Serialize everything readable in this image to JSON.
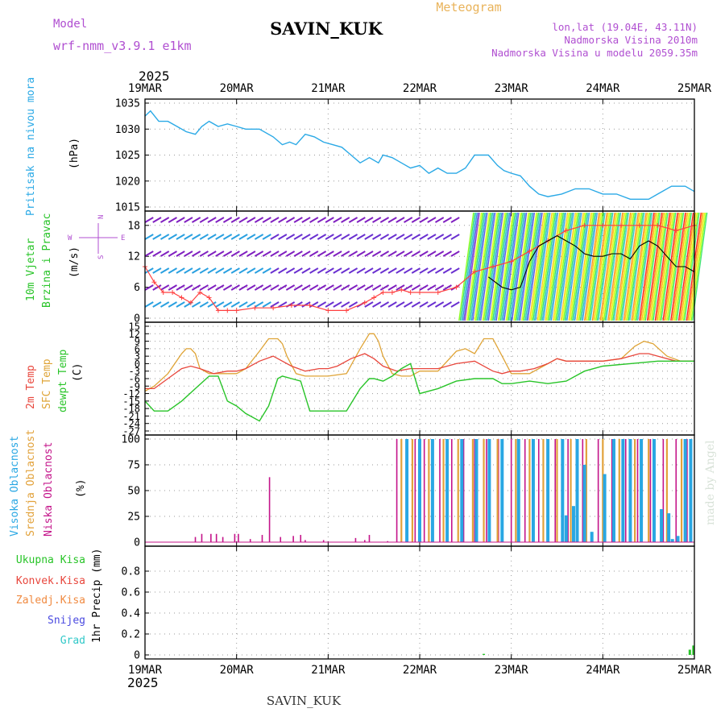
{
  "header": {
    "model_label": "Model",
    "model_name": "wrf-nmm_v3.9.1 e1km",
    "station": "SAVIN_KUK",
    "product": "Meteogram",
    "lonlat": "lon,lat (19.04E, 43.11N)",
    "elevation": "Nadmorska Visina 2010m",
    "model_elevation": "Nadmorska Visina u modelu 2059.35m",
    "year": "2025",
    "footer_station": "SAVIN_KUK",
    "credit": "made by Angel"
  },
  "colors": {
    "pressure": "#2aa9e6",
    "temp2m": "#e8463c",
    "sfc_temp": "#dfa437",
    "dewpoint": "#28c428",
    "high_cloud": "#29a7e3",
    "mid_cloud": "#e2a23b",
    "low_cloud": "#c4148a",
    "wind_speed": "#ff4040",
    "gust": "#000000",
    "label_purple": "#b04fd1",
    "label_orange": "#e9b35a"
  },
  "x_axis": {
    "tick_labels": [
      "19MAR",
      "20MAR",
      "21MAR",
      "22MAR",
      "23MAR",
      "24MAR",
      "25MAR"
    ],
    "range_days": [
      0,
      6
    ]
  },
  "chart_data": [
    {
      "type": "line",
      "id": "pressure",
      "ylabel": "(hPa)",
      "side_labels": [
        "Pritisak na nivou mora"
      ],
      "yticks": [
        "1015",
        "1020",
        "1025",
        "1030",
        "1035"
      ],
      "ylim": [
        1015,
        1035
      ],
      "grid": true,
      "series": [
        {
          "x": [
            0,
            0.06,
            0.15,
            0.25,
            0.35,
            0.45,
            0.55,
            0.62,
            0.7,
            0.8,
            0.9,
            1.0,
            1.1,
            1.25,
            1.4,
            1.5,
            1.58,
            1.65,
            1.75,
            1.85,
            1.95,
            2.05,
            2.15,
            2.25,
            2.35,
            2.45,
            2.55,
            2.6,
            2.7,
            2.8,
            2.9,
            3.0,
            3.1,
            3.2,
            3.3,
            3.4,
            3.5,
            3.6,
            3.75,
            3.85,
            3.92,
            4.0,
            4.1,
            4.2,
            4.3,
            4.4,
            4.55,
            4.7,
            4.85,
            5.0,
            5.15,
            5.3,
            5.45,
            5.5,
            5.6,
            5.75,
            5.9,
            6.0
          ],
          "values": [
            1032.5,
            1033.5,
            1031.5,
            1031.5,
            1030.5,
            1029.5,
            1029.0,
            1030.5,
            1031.5,
            1030.5,
            1031.0,
            1030.5,
            1030.0,
            1030.0,
            1028.5,
            1027.0,
            1027.5,
            1027.0,
            1029.0,
            1028.5,
            1027.5,
            1027.0,
            1026.5,
            1025.0,
            1023.5,
            1024.5,
            1023.5,
            1025.0,
            1024.5,
            1023.5,
            1022.5,
            1023.0,
            1021.5,
            1022.5,
            1021.5,
            1021.5,
            1022.5,
            1025.0,
            1025.0,
            1023.0,
            1022.0,
            1021.5,
            1021.0,
            1019.0,
            1017.5,
            1017.0,
            1017.5,
            1018.5,
            1018.5,
            1017.5,
            1017.5,
            1016.5,
            1016.5,
            1016.5,
            1017.5,
            1019.0,
            1019.0,
            1018.0
          ]
        }
      ]
    },
    {
      "type": "line",
      "id": "wind",
      "ylabel": "(m/s)",
      "side_labels": [
        "10m Vjetar",
        "Brzina i Pravac"
      ],
      "compass": {
        "n": "N",
        "s": "S",
        "w": "W",
        "e": "E"
      },
      "yticks": [
        "0",
        "6",
        "12",
        "18"
      ],
      "ylim": [
        0,
        20
      ],
      "grid": true,
      "series": [
        {
          "name": "wind_speed",
          "x": [
            0,
            0.1,
            0.2,
            0.3,
            0.4,
            0.5,
            0.6,
            0.7,
            0.8,
            0.9,
            1.0,
            1.2,
            1.4,
            1.6,
            1.8,
            2.0,
            2.2,
            2.4,
            2.5,
            2.6,
            2.7,
            2.8,
            2.9,
            3.0,
            3.2,
            3.4,
            3.6,
            3.8,
            4.0,
            4.2,
            4.4,
            4.6,
            4.8,
            5.0,
            5.2,
            5.4,
            5.6,
            5.8,
            6.0
          ],
          "values": [
            10,
            7,
            5,
            5,
            4,
            3,
            5,
            4,
            1.5,
            1.5,
            1.5,
            2,
            2,
            2.5,
            2.5,
            1.5,
            1.5,
            3,
            4,
            5,
            5,
            5.5,
            5,
            5,
            5,
            6,
            9,
            10,
            11,
            13,
            15,
            17,
            18,
            18,
            18,
            18,
            18,
            17,
            18
          ]
        },
        {
          "name": "gust",
          "x": [
            3.75,
            3.9,
            4.0,
            4.1,
            4.2,
            4.3,
            4.4,
            4.5,
            4.6,
            4.7,
            4.8,
            4.9,
            5.0,
            5.1,
            5.2,
            5.3,
            5.4,
            5.5,
            5.6,
            5.7,
            5.8,
            5.9,
            6.0
          ],
          "values": [
            8,
            6,
            5.5,
            6,
            11,
            14,
            15,
            16,
            15,
            14,
            12.5,
            12,
            12,
            12.5,
            12.5,
            11.5,
            14,
            15,
            14,
            12,
            10,
            10,
            9
          ]
        }
      ]
    },
    {
      "type": "line",
      "id": "temperature",
      "ylabel": "(C)",
      "side_labels": [
        "2m Temp",
        "SFC Temp",
        "dewpt Temp"
      ],
      "yticks": [
        "-27",
        "-24",
        "-21",
        "-18",
        "-15",
        "-12",
        "-9",
        "-6",
        "-3",
        "0",
        "3",
        "6",
        "9",
        "12",
        "15"
      ],
      "ylim": [
        -27,
        15
      ],
      "grid": true,
      "series": [
        {
          "name": "2m Temp",
          "x": [
            0,
            0.1,
            0.25,
            0.4,
            0.5,
            0.6,
            0.75,
            0.9,
            1.0,
            1.1,
            1.25,
            1.4,
            1.5,
            1.6,
            1.75,
            1.9,
            2.0,
            2.1,
            2.25,
            2.4,
            2.5,
            2.6,
            2.75,
            2.9,
            3.0,
            3.2,
            3.4,
            3.6,
            3.8,
            3.9,
            4.0,
            4.1,
            4.25,
            4.4,
            4.5,
            4.6,
            4.8,
            5.0,
            5.2,
            5.4,
            5.5,
            5.6,
            5.8,
            6.0
          ],
          "values": [
            -10,
            -10,
            -6,
            -2,
            -1,
            -2,
            -4,
            -3,
            -3,
            -2,
            1,
            3,
            1,
            -1,
            -3,
            -2,
            -2,
            -1,
            2,
            4,
            2,
            -1,
            -3,
            -2,
            -2,
            -2,
            0,
            1,
            -3,
            -4,
            -3,
            -3,
            -2,
            0,
            2,
            1,
            1,
            1,
            2,
            4,
            4,
            3,
            1,
            1
          ]
        },
        {
          "name": "SFC Temp",
          "x": [
            0,
            0.1,
            0.25,
            0.4,
            0.45,
            0.5,
            0.55,
            0.6,
            0.7,
            0.8,
            1.0,
            1.1,
            1.25,
            1.35,
            1.45,
            1.5,
            1.55,
            1.65,
            1.75,
            2.0,
            2.2,
            2.35,
            2.45,
            2.5,
            2.55,
            2.6,
            2.7,
            2.8,
            2.9,
            3.0,
            3.2,
            3.4,
            3.5,
            3.6,
            3.7,
            3.8,
            3.9,
            4.0,
            4.1,
            4.2,
            4.35,
            4.5,
            4.6,
            5.0,
            5.2,
            5.35,
            5.45,
            5.55,
            5.7,
            5.85,
            6.0
          ],
          "values": [
            -11,
            -9,
            -4,
            4,
            6,
            6,
            4,
            -2,
            -4,
            -4,
            -4,
            -2,
            5,
            10,
            10,
            8,
            3,
            -4,
            -5,
            -5,
            -4,
            6,
            12,
            12,
            9,
            3,
            -4,
            -5,
            -5,
            -3,
            -3,
            5,
            6,
            4,
            10,
            10,
            3,
            -4,
            -4,
            -4,
            -1,
            2,
            1,
            1,
            2,
            7,
            9,
            8,
            3,
            1,
            1
          ]
        },
        {
          "name": "dewpt Temp",
          "x": [
            0,
            0.1,
            0.25,
            0.4,
            0.55,
            0.7,
            0.8,
            0.9,
            1.0,
            1.1,
            1.25,
            1.35,
            1.45,
            1.5,
            1.6,
            1.7,
            1.8,
            1.9,
            2.0,
            2.1,
            2.2,
            2.35,
            2.45,
            2.5,
            2.6,
            2.7,
            2.8,
            2.9,
            3.0,
            3.2,
            3.4,
            3.6,
            3.8,
            3.9,
            4.0,
            4.2,
            4.4,
            4.6,
            4.8,
            5.0,
            5.3,
            5.6,
            6.0
          ],
          "values": [
            -15,
            -19,
            -19,
            -15,
            -10,
            -5,
            -5,
            -15,
            -17,
            -20,
            -23,
            -17,
            -6,
            -5,
            -6,
            -7,
            -19,
            -19,
            -19,
            -19,
            -19,
            -10,
            -6,
            -6,
            -7,
            -5,
            -2,
            0,
            -12,
            -10,
            -7,
            -6,
            -6,
            -8,
            -8,
            -7,
            -8,
            -7,
            -3,
            -1,
            0,
            1,
            1
          ]
        }
      ]
    },
    {
      "type": "bar",
      "id": "cloud",
      "ylabel": "(%)",
      "side_labels": [
        "Visoka Oblacnost",
        "Srednja Oblacnost",
        "Niska Oblacnost"
      ],
      "yticks": [
        "0",
        "25",
        "50",
        "75",
        "100"
      ],
      "ylim": [
        0,
        100
      ],
      "grid": true,
      "series": [
        {
          "name": "Niska Oblacnost",
          "x": [
            0.55,
            0.62,
            0.72,
            0.78,
            0.85,
            0.98,
            1.02,
            1.15,
            1.28,
            1.36,
            1.48,
            1.62,
            1.7,
            1.75,
            1.95,
            2.3,
            2.4,
            2.45,
            2.65,
            2.75,
            2.95,
            3.05,
            3.22,
            3.35,
            3.48,
            3.6,
            3.73,
            3.86,
            4.0,
            4.15,
            4.3,
            4.48,
            4.62,
            4.78,
            4.95,
            5.1,
            5.25,
            5.38,
            5.52,
            5.66,
            5.8,
            5.92
          ],
          "values": [
            5,
            8,
            8,
            8,
            5,
            8,
            8,
            3,
            7,
            63,
            5,
            6,
            7,
            2,
            2,
            4,
            2,
            7,
            1,
            100,
            100,
            100,
            100,
            100,
            100,
            100,
            100,
            100,
            100,
            100,
            100,
            100,
            100,
            100,
            100,
            100,
            100,
            100,
            100,
            100,
            100,
            100
          ]
        },
        {
          "name": "Srednja Oblacnost",
          "x": [
            2.8,
            2.92,
            3.1,
            3.26,
            3.42,
            3.58,
            3.7,
            3.85,
            4.05,
            4.2,
            4.35,
            4.5,
            4.65,
            4.82,
            5.0,
            5.18,
            5.35,
            5.5,
            5.7,
            5.86
          ],
          "values": [
            100,
            100,
            100,
            100,
            100,
            100,
            100,
            100,
            100,
            100,
            100,
            100,
            100,
            100,
            100,
            100,
            100,
            100,
            100,
            100
          ]
        },
        {
          "name": "Visoka Oblacnost",
          "x": [
            2.86,
            3.0,
            3.14,
            3.3,
            3.46,
            3.62,
            3.76,
            3.9,
            4.08,
            4.24,
            4.4,
            4.56,
            4.6,
            4.68,
            4.72,
            4.8,
            4.88,
            5.02,
            5.12,
            5.22,
            5.3,
            5.42,
            5.56,
            5.64,
            5.72,
            5.76,
            5.82,
            5.9,
            5.96
          ],
          "values": [
            100,
            100,
            100,
            100,
            100,
            100,
            100,
            100,
            100,
            100,
            100,
            100,
            26,
            35,
            100,
            75,
            10,
            66,
            100,
            100,
            100,
            100,
            100,
            32,
            28,
            3,
            6,
            100,
            100
          ]
        }
      ]
    },
    {
      "type": "bar",
      "id": "precip",
      "ylabel": "1hr Precip (mm)",
      "side_labels": [
        "Ukupna Kisa",
        "Konvek.Kisa",
        "Zaledj.Kisa",
        "Snijeg",
        "Grad"
      ],
      "yticks": [
        "0",
        "0.2",
        "0.4",
        "0.6",
        "0.8"
      ],
      "ylim": [
        0,
        1
      ],
      "grid": true,
      "series": [
        {
          "name": "Ukupna Kisa",
          "x": [
            3.7,
            5.95,
            5.99
          ],
          "values": [
            0.01,
            0.05,
            0.09
          ]
        }
      ]
    }
  ]
}
